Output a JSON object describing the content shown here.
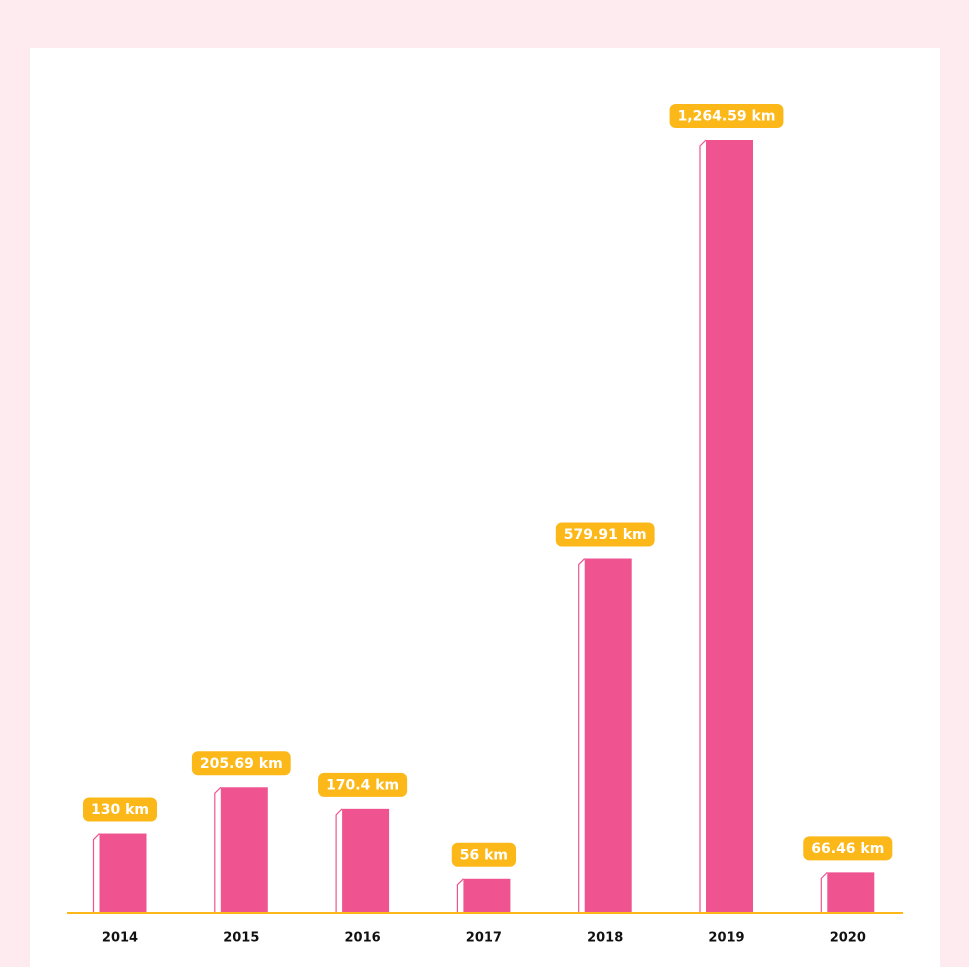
{
  "chart_data": {
    "type": "bar",
    "categories": [
      "2014",
      "2015",
      "2016",
      "2017",
      "2018",
      "2019",
      "2020"
    ],
    "values": [
      130,
      205.69,
      170.4,
      56,
      579.91,
      1264.59,
      66.46
    ],
    "value_labels": [
      "130 km",
      "205.69 km",
      "170.4 km",
      "56 km",
      "579.91 km",
      "1,264.59 km",
      "66.46 km"
    ],
    "color": "#ef5491",
    "label_color": "#fbb818"
  }
}
